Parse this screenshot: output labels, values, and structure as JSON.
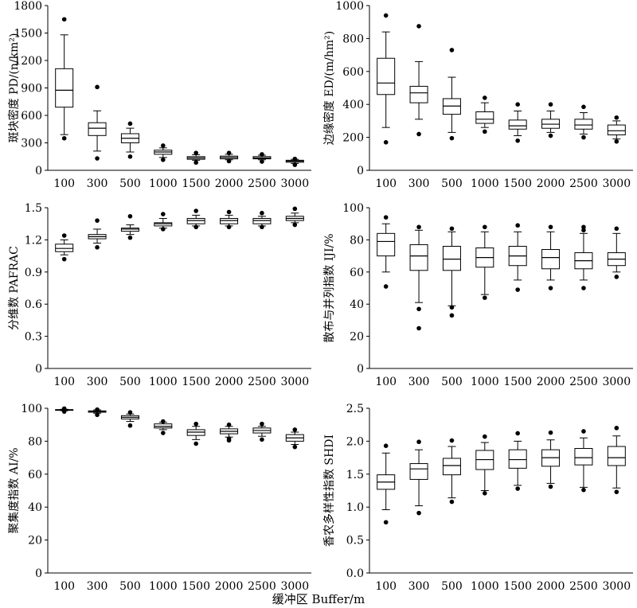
{
  "figure": {
    "xlabel": "缓冲区 Buffer/m"
  },
  "chart_data": [
    {
      "type": "box",
      "ylabel": "斑块密度 PD/(n/km²)",
      "ylim": [
        0,
        1800
      ],
      "yticks": [
        0,
        300,
        600,
        900,
        1200,
        1500,
        1800
      ],
      "categories": [
        "100",
        "300",
        "500",
        "1000",
        "1500",
        "2000",
        "2500",
        "3000"
      ],
      "boxes": [
        {
          "min": 390,
          "q1": 690,
          "median": 875,
          "q3": 1110,
          "max": 1480,
          "outliers": [
            350,
            1650
          ]
        },
        {
          "min": 210,
          "q1": 380,
          "median": 460,
          "q3": 520,
          "max": 650,
          "outliers": [
            130,
            910
          ]
        },
        {
          "min": 200,
          "q1": 300,
          "median": 350,
          "q3": 400,
          "max": 460,
          "outliers": [
            150,
            510
          ]
        },
        {
          "min": 140,
          "q1": 175,
          "median": 200,
          "q3": 220,
          "max": 245,
          "outliers": [
            115,
            270
          ]
        },
        {
          "min": 110,
          "q1": 120,
          "median": 135,
          "q3": 150,
          "max": 170,
          "outliers": [
            85,
            190
          ]
        },
        {
          "min": 115,
          "q1": 125,
          "median": 140,
          "q3": 155,
          "max": 175,
          "outliers": [
            100,
            190
          ]
        },
        {
          "min": 115,
          "q1": 125,
          "median": 135,
          "q3": 150,
          "max": 165,
          "outliers": [
            95,
            175
          ]
        },
        {
          "min": 75,
          "q1": 88,
          "median": 100,
          "q3": 110,
          "max": 120,
          "outliers": [
            60,
            125
          ]
        }
      ]
    },
    {
      "type": "box",
      "ylabel": "边缘密度 ED/(m/hm²)",
      "ylim": [
        0,
        1000
      ],
      "yticks": [
        0,
        200,
        400,
        600,
        800,
        1000
      ],
      "categories": [
        "100",
        "300",
        "500",
        "1000",
        "1500",
        "2000",
        "2500",
        "3000"
      ],
      "boxes": [
        {
          "min": 260,
          "q1": 460,
          "median": 530,
          "q3": 680,
          "max": 840,
          "outliers": [
            170,
            940
          ]
        },
        {
          "min": 310,
          "q1": 410,
          "median": 470,
          "q3": 510,
          "max": 660,
          "outliers": [
            220,
            875
          ]
        },
        {
          "min": 230,
          "q1": 340,
          "median": 390,
          "q3": 435,
          "max": 565,
          "outliers": [
            195,
            730
          ]
        },
        {
          "min": 260,
          "q1": 285,
          "median": 310,
          "q3": 355,
          "max": 410,
          "outliers": [
            235,
            440
          ]
        },
        {
          "min": 210,
          "q1": 250,
          "median": 270,
          "q3": 305,
          "max": 360,
          "outliers": [
            180,
            400
          ]
        },
        {
          "min": 230,
          "q1": 255,
          "median": 280,
          "q3": 310,
          "max": 360,
          "outliers": [
            210,
            400
          ]
        },
        {
          "min": 220,
          "q1": 250,
          "median": 275,
          "q3": 310,
          "max": 350,
          "outliers": [
            200,
            385
          ]
        },
        {
          "min": 190,
          "q1": 215,
          "median": 240,
          "q3": 275,
          "max": 300,
          "outliers": [
            175,
            320
          ]
        }
      ]
    },
    {
      "type": "box",
      "ylabel": "分维数 PAFRAC",
      "ylim": [
        0,
        1.5
      ],
      "yticks": [
        0,
        0.3,
        0.6,
        0.9,
        1.2,
        1.5
      ],
      "categories": [
        "100",
        "300",
        "500",
        "1000",
        "1500",
        "2000",
        "2500",
        "3000"
      ],
      "boxes": [
        {
          "min": 1.06,
          "q1": 1.09,
          "median": 1.12,
          "q3": 1.16,
          "max": 1.2,
          "outliers": [
            1.02,
            1.24
          ]
        },
        {
          "min": 1.17,
          "q1": 1.21,
          "median": 1.23,
          "q3": 1.25,
          "max": 1.3,
          "outliers": [
            1.13,
            1.38
          ]
        },
        {
          "min": 1.25,
          "q1": 1.28,
          "median": 1.3,
          "q3": 1.31,
          "max": 1.34,
          "outliers": [
            1.22,
            1.42
          ]
        },
        {
          "min": 1.31,
          "q1": 1.33,
          "median": 1.35,
          "q3": 1.36,
          "max": 1.4,
          "outliers": [
            1.3,
            1.44
          ]
        },
        {
          "min": 1.33,
          "q1": 1.35,
          "median": 1.38,
          "q3": 1.4,
          "max": 1.43,
          "outliers": [
            1.32,
            1.47
          ]
        },
        {
          "min": 1.33,
          "q1": 1.35,
          "median": 1.38,
          "q3": 1.4,
          "max": 1.43,
          "outliers": [
            1.32,
            1.46
          ]
        },
        {
          "min": 1.33,
          "q1": 1.35,
          "median": 1.38,
          "q3": 1.4,
          "max": 1.42,
          "outliers": [
            1.32,
            1.45
          ]
        },
        {
          "min": 1.36,
          "q1": 1.38,
          "median": 1.4,
          "q3": 1.42,
          "max": 1.45,
          "outliers": [
            1.34,
            1.49
          ]
        }
      ]
    },
    {
      "type": "box",
      "ylabel": "散布与并列指数 IJI/%",
      "ylim": [
        0,
        100
      ],
      "yticks": [
        0,
        20,
        40,
        60,
        80,
        100
      ],
      "categories": [
        "100",
        "300",
        "500",
        "1000",
        "1500",
        "2000",
        "2500",
        "3000"
      ],
      "boxes": [
        {
          "min": 60,
          "q1": 70,
          "median": 79,
          "q3": 84,
          "max": 90,
          "outliers": [
            51,
            94
          ]
        },
        {
          "min": 41,
          "q1": 61,
          "median": 70,
          "q3": 77,
          "max": 86,
          "outliers": [
            25,
            37,
            88
          ]
        },
        {
          "min": 39,
          "q1": 61,
          "median": 68,
          "q3": 76,
          "max": 85,
          "outliers": [
            33,
            38,
            87
          ]
        },
        {
          "min": 46,
          "q1": 63,
          "median": 69,
          "q3": 75,
          "max": 85,
          "outliers": [
            44,
            88
          ]
        },
        {
          "min": 55,
          "q1": 64,
          "median": 70,
          "q3": 76,
          "max": 85,
          "outliers": [
            49,
            89
          ]
        },
        {
          "min": 55,
          "q1": 62,
          "median": 69,
          "q3": 74,
          "max": 85,
          "outliers": [
            50,
            88
          ]
        },
        {
          "min": 55,
          "q1": 62,
          "median": 67,
          "q3": 72,
          "max": 84,
          "outliers": [
            50,
            86,
            88
          ]
        },
        {
          "min": 60,
          "q1": 64,
          "median": 68,
          "q3": 72,
          "max": 84,
          "outliers": [
            57,
            87
          ]
        }
      ]
    },
    {
      "type": "box",
      "ylabel": "聚集度指数 AI/%",
      "ylim": [
        0,
        100
      ],
      "yticks": [
        0,
        20,
        40,
        60,
        80,
        100
      ],
      "categories": [
        "100",
        "300",
        "500",
        "1000",
        "1500",
        "2000",
        "2500",
        "3000"
      ],
      "boxes": [
        {
          "min": 98.5,
          "q1": 98.8,
          "median": 99,
          "q3": 99.2,
          "max": 99.4,
          "outliers": [
            98,
            99.8
          ]
        },
        {
          "min": 97,
          "q1": 97.6,
          "median": 98,
          "q3": 98.4,
          "max": 99,
          "outliers": [
            96,
            99.2
          ]
        },
        {
          "min": 92,
          "q1": 93.5,
          "median": 94.5,
          "q3": 95.5,
          "max": 96.5,
          "outliers": [
            89.5,
            97.5
          ]
        },
        {
          "min": 87,
          "q1": 88,
          "median": 89,
          "q3": 90.5,
          "max": 91.5,
          "outliers": [
            85,
            92
          ]
        },
        {
          "min": 81,
          "q1": 83.5,
          "median": 85.5,
          "q3": 87,
          "max": 89,
          "outliers": [
            78.5,
            90.5
          ]
        },
        {
          "min": 82.5,
          "q1": 84.5,
          "median": 86,
          "q3": 87.5,
          "max": 89,
          "outliers": [
            80.5,
            81.5,
            90
          ]
        },
        {
          "min": 83,
          "q1": 85,
          "median": 86.5,
          "q3": 88,
          "max": 89,
          "outliers": [
            81,
            90.5
          ]
        },
        {
          "min": 78,
          "q1": 80,
          "median": 82,
          "q3": 84,
          "max": 85.5,
          "outliers": [
            76.5,
            87
          ]
        }
      ]
    },
    {
      "type": "box",
      "ylabel": "香农多样性指数 SHDI",
      "ylim": [
        0,
        2.5
      ],
      "yticks": [
        0,
        0.5,
        1.0,
        1.5,
        2.0,
        2.5
      ],
      "tick_decimals": 1,
      "categories": [
        "100",
        "300",
        "500",
        "1000",
        "1500",
        "2000",
        "2500",
        "3000"
      ],
      "boxes": [
        {
          "min": 0.96,
          "q1": 1.27,
          "median": 1.38,
          "q3": 1.49,
          "max": 1.82,
          "outliers": [
            0.77,
            1.93
          ]
        },
        {
          "min": 1.02,
          "q1": 1.42,
          "median": 1.58,
          "q3": 1.66,
          "max": 1.87,
          "outliers": [
            0.91,
            1.99
          ]
        },
        {
          "min": 1.14,
          "q1": 1.49,
          "median": 1.63,
          "q3": 1.74,
          "max": 1.92,
          "outliers": [
            1.08,
            2.01
          ]
        },
        {
          "min": 1.25,
          "q1": 1.57,
          "median": 1.72,
          "q3": 1.86,
          "max": 1.98,
          "outliers": [
            1.21,
            2.07
          ]
        },
        {
          "min": 1.33,
          "q1": 1.59,
          "median": 1.72,
          "q3": 1.87,
          "max": 2.0,
          "outliers": [
            1.28,
            2.12
          ]
        },
        {
          "min": 1.36,
          "q1": 1.62,
          "median": 1.75,
          "q3": 1.87,
          "max": 2.02,
          "outliers": [
            1.31,
            2.13
          ]
        },
        {
          "min": 1.3,
          "q1": 1.64,
          "median": 1.75,
          "q3": 1.89,
          "max": 2.05,
          "outliers": [
            1.26,
            2.15
          ]
        },
        {
          "min": 1.29,
          "q1": 1.63,
          "median": 1.75,
          "q3": 1.92,
          "max": 2.08,
          "outliers": [
            1.23,
            2.2
          ]
        }
      ]
    }
  ]
}
